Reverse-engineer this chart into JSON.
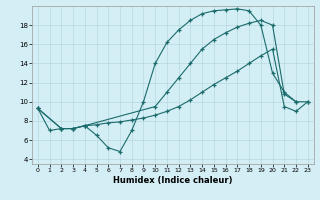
{
  "xlabel": "Humidex (Indice chaleur)",
  "bg_color": "#d4eef5",
  "grid_color": "#b8d8e0",
  "line_color": "#1a6b6b",
  "xlim": [
    -0.5,
    23.5
  ],
  "ylim": [
    3.5,
    20.0
  ],
  "xticks": [
    0,
    1,
    2,
    3,
    4,
    5,
    6,
    7,
    8,
    9,
    10,
    11,
    12,
    13,
    14,
    15,
    16,
    17,
    18,
    19,
    20,
    21,
    22,
    23
  ],
  "yticks": [
    4,
    6,
    8,
    10,
    12,
    14,
    16,
    18
  ],
  "line1_x": [
    0,
    1,
    2,
    3,
    4,
    5,
    6,
    7,
    8,
    9,
    10,
    11,
    12,
    13,
    14,
    15,
    16,
    17,
    18,
    19,
    20,
    21,
    22
  ],
  "line1_y": [
    9.3,
    7.0,
    7.2,
    7.2,
    7.5,
    6.5,
    5.2,
    4.8,
    7.0,
    10.0,
    14.0,
    16.2,
    17.5,
    18.5,
    19.2,
    19.5,
    19.6,
    19.7,
    19.5,
    18.0,
    13.0,
    11.0,
    10.0
  ],
  "line2_x": [
    0,
    2,
    3,
    4,
    10,
    11,
    12,
    13,
    14,
    15,
    16,
    17,
    18,
    19,
    20,
    21,
    22,
    23
  ],
  "line2_y": [
    9.3,
    7.2,
    7.2,
    7.5,
    9.5,
    11.0,
    12.5,
    14.0,
    15.5,
    16.5,
    17.2,
    17.8,
    18.2,
    18.5,
    18.0,
    10.8,
    10.0,
    10.0
  ],
  "line3_x": [
    0,
    2,
    3,
    4,
    5,
    6,
    7,
    8,
    9,
    10,
    11,
    12,
    13,
    14,
    15,
    16,
    17,
    18,
    19,
    20,
    21,
    22,
    23
  ],
  "line3_y": [
    9.3,
    7.2,
    7.2,
    7.5,
    7.6,
    7.8,
    7.9,
    8.1,
    8.3,
    8.6,
    9.0,
    9.5,
    10.2,
    11.0,
    11.8,
    12.5,
    13.2,
    14.0,
    14.8,
    15.5,
    9.5,
    9.0,
    10.0
  ]
}
